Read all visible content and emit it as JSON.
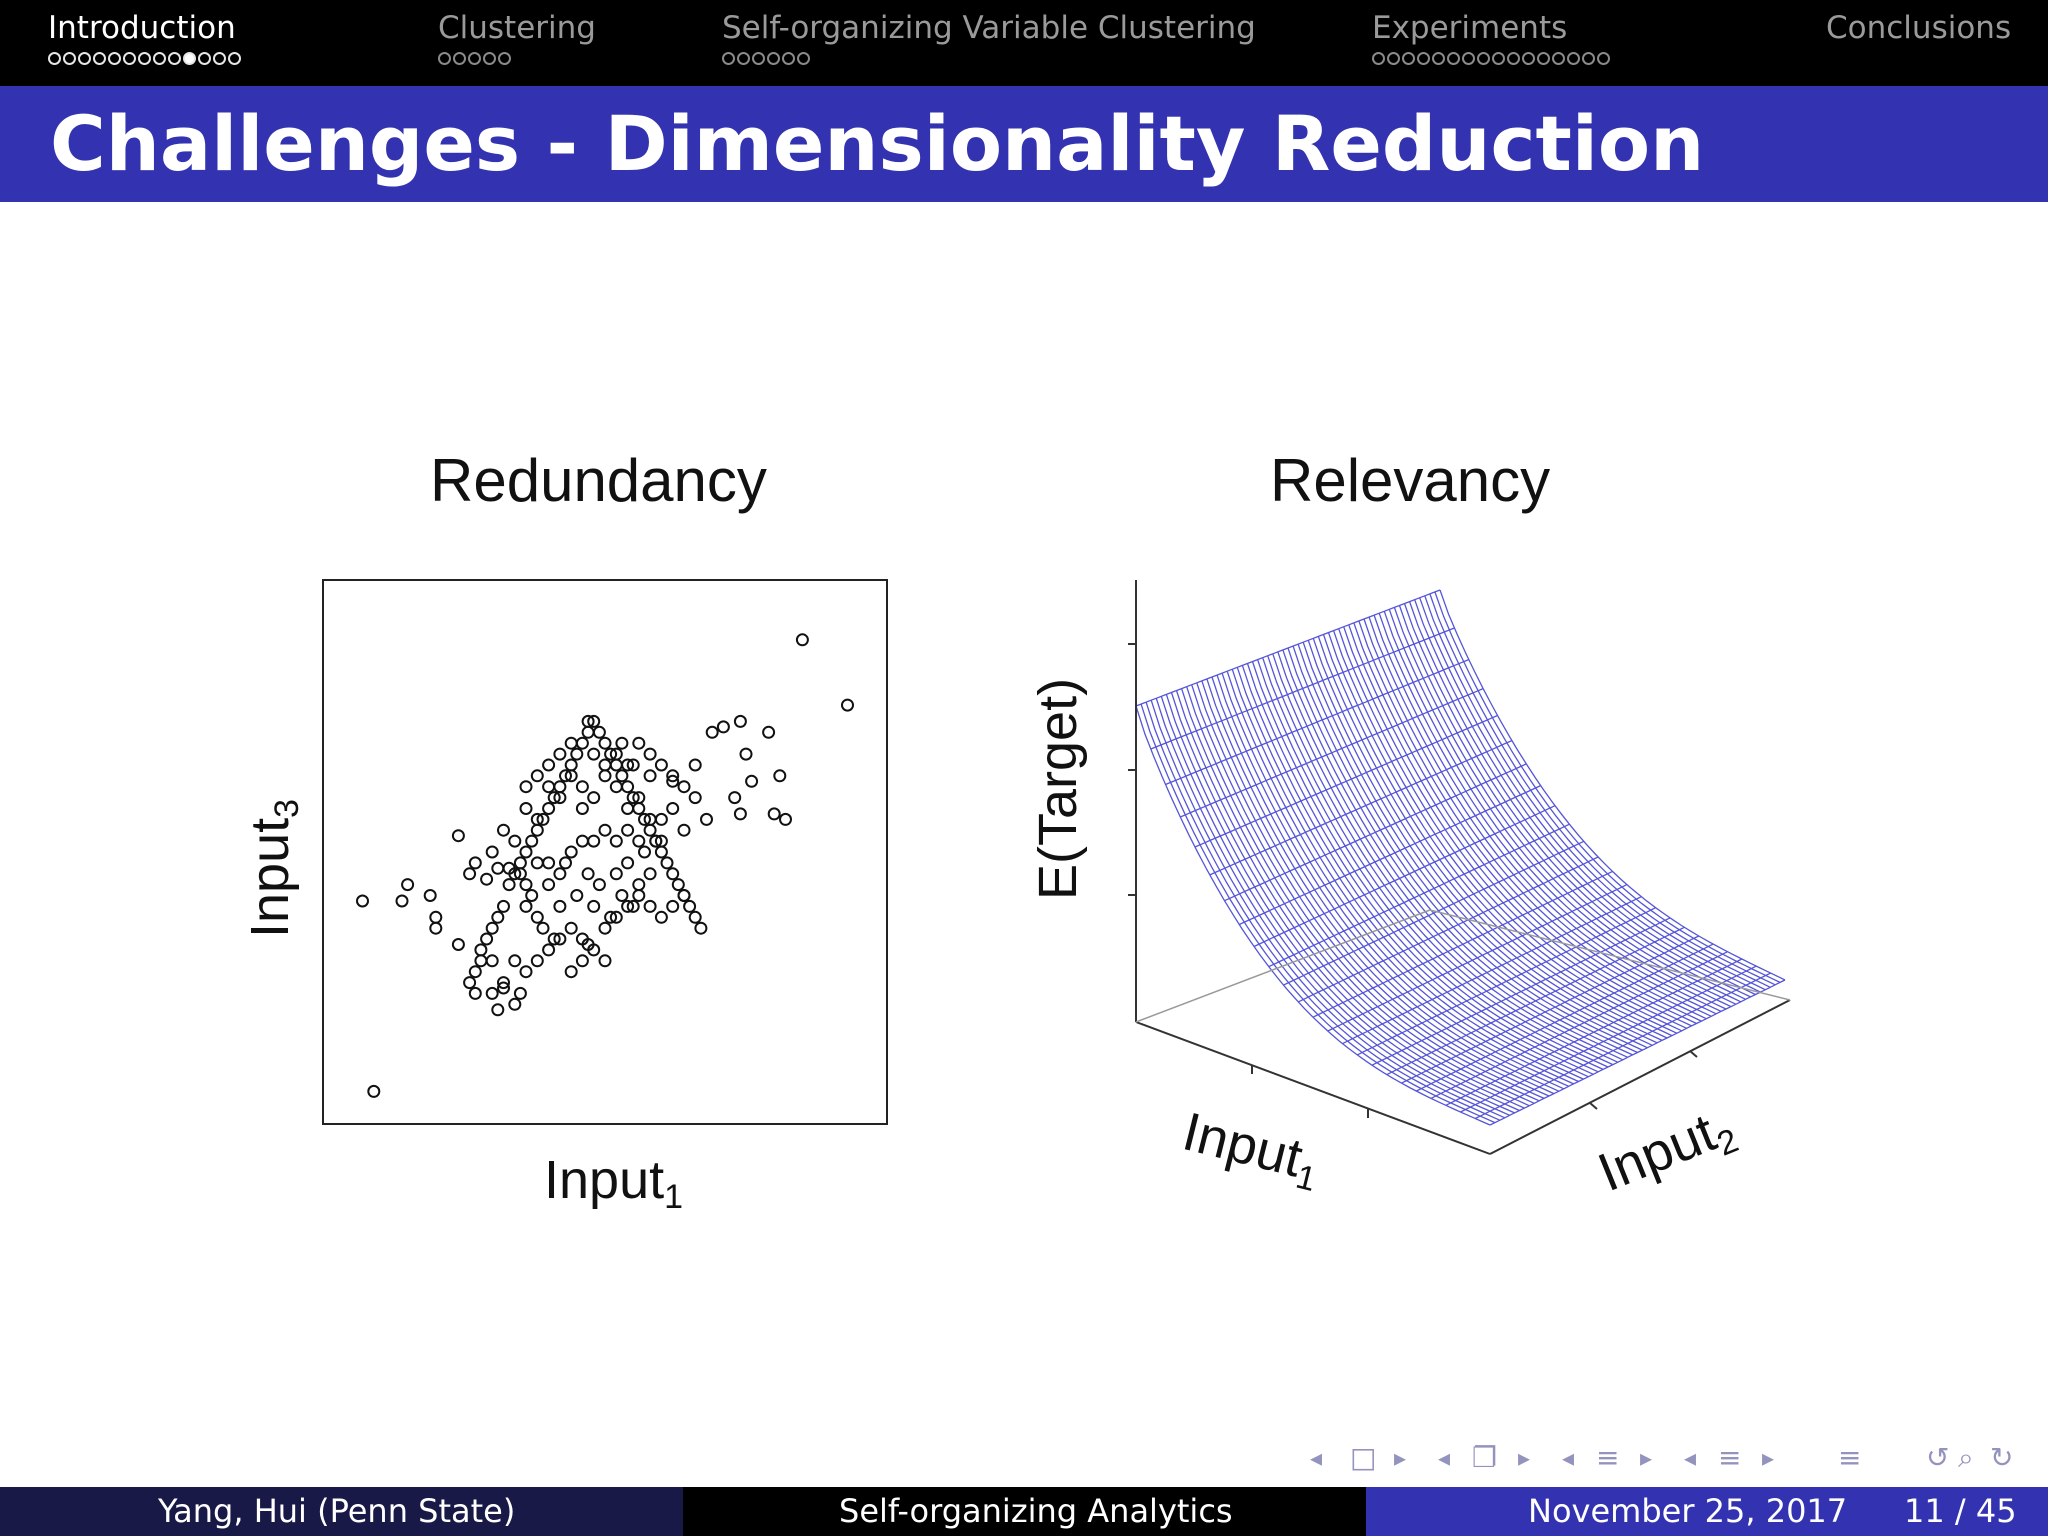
{
  "nav": {
    "sections": [
      {
        "label": "Introduction",
        "dots": 13,
        "filled": 9,
        "current": true
      },
      {
        "label": "Clustering",
        "dots": 5,
        "filled": -1,
        "current": false
      },
      {
        "label": "Self-organizing Variable Clustering",
        "dots": 6,
        "filled": -1,
        "current": false
      },
      {
        "label": "Experiments",
        "dots": 16,
        "filled": -1,
        "current": false
      },
      {
        "label": "Conclusions",
        "dots": 0,
        "filled": -1,
        "current": false
      }
    ]
  },
  "slide": {
    "title": "Challenges - Dimensionality Reduction"
  },
  "figure": {
    "left": {
      "title": "Redundancy",
      "xlabel": "Input",
      "xlabel_sub": "1",
      "ylabel": "Input",
      "ylabel_sub": "3"
    },
    "right": {
      "title": "Relevancy",
      "zlabel": "E(Target)",
      "xlabel": "Input",
      "xlabel_sub": "1",
      "ylabel": "Input",
      "ylabel_sub": "2"
    }
  },
  "chart_data": [
    {
      "type": "scatter",
      "title": "Redundancy",
      "xlabel": "Input1",
      "ylabel": "Input3",
      "xlim": [
        0,
        100
      ],
      "ylim": [
        0,
        100
      ],
      "grid": false,
      "points": [
        [
          9,
          6
        ],
        [
          7,
          41
        ],
        [
          14,
          41
        ],
        [
          15,
          44
        ],
        [
          19,
          42
        ],
        [
          20,
          38
        ],
        [
          20,
          36
        ],
        [
          24,
          33
        ],
        [
          27,
          24
        ],
        [
          27,
          28
        ],
        [
          28,
          32
        ],
        [
          29,
          34
        ],
        [
          30,
          36
        ],
        [
          31,
          38
        ],
        [
          32,
          40
        ],
        [
          33,
          44
        ],
        [
          34,
          46
        ],
        [
          35,
          48
        ],
        [
          36,
          50
        ],
        [
          37,
          52
        ],
        [
          38,
          54
        ],
        [
          39,
          56
        ],
        [
          40,
          58
        ],
        [
          41,
          60
        ],
        [
          42,
          62
        ],
        [
          43,
          64
        ],
        [
          44,
          66
        ],
        [
          45,
          68
        ],
        [
          46,
          70
        ],
        [
          47,
          72
        ],
        [
          48,
          74
        ],
        [
          49,
          72
        ],
        [
          50,
          70
        ],
        [
          51,
          68
        ],
        [
          52,
          66
        ],
        [
          53,
          64
        ],
        [
          54,
          62
        ],
        [
          55,
          60
        ],
        [
          56,
          58
        ],
        [
          57,
          56
        ],
        [
          58,
          54
        ],
        [
          59,
          52
        ],
        [
          60,
          50
        ],
        [
          61,
          48
        ],
        [
          62,
          46
        ],
        [
          63,
          44
        ],
        [
          64,
          42
        ],
        [
          65,
          40
        ],
        [
          66,
          38
        ],
        [
          67,
          36
        ],
        [
          26,
          26
        ],
        [
          28,
          30
        ],
        [
          30,
          30
        ],
        [
          32,
          26
        ],
        [
          34,
          30
        ],
        [
          35,
          24
        ],
        [
          36,
          40
        ],
        [
          37,
          42
        ],
        [
          38,
          38
        ],
        [
          39,
          36
        ],
        [
          40,
          44
        ],
        [
          41,
          34
        ],
        [
          42,
          40
        ],
        [
          43,
          48
        ],
        [
          44,
          36
        ],
        [
          45,
          42
        ],
        [
          46,
          34
        ],
        [
          47,
          46
        ],
        [
          48,
          40
        ],
        [
          49,
          44
        ],
        [
          50,
          36
        ],
        [
          51,
          38
        ],
        [
          52,
          46
        ],
        [
          53,
          42
        ],
        [
          54,
          48
        ],
        [
          55,
          40
        ],
        [
          56,
          44
        ],
        [
          57,
          50
        ],
        [
          58,
          46
        ],
        [
          59,
          52
        ],
        [
          30,
          50
        ],
        [
          32,
          54
        ],
        [
          34,
          52
        ],
        [
          36,
          58
        ],
        [
          38,
          56
        ],
        [
          40,
          62
        ],
        [
          42,
          60
        ],
        [
          44,
          64
        ],
        [
          46,
          58
        ],
        [
          48,
          60
        ],
        [
          50,
          66
        ],
        [
          52,
          62
        ],
        [
          54,
          58
        ],
        [
          56,
          60
        ],
        [
          58,
          64
        ],
        [
          60,
          56
        ],
        [
          62,
          58
        ],
        [
          64,
          54
        ],
        [
          66,
          60
        ],
        [
          68,
          56
        ],
        [
          24,
          53
        ],
        [
          26,
          46
        ],
        [
          27,
          48
        ],
        [
          29,
          45
        ],
        [
          31,
          47
        ],
        [
          33,
          47
        ],
        [
          35,
          46
        ],
        [
          36,
          44
        ],
        [
          38,
          48
        ],
        [
          40,
          48
        ],
        [
          42,
          46
        ],
        [
          44,
          50
        ],
        [
          46,
          52
        ],
        [
          48,
          52
        ],
        [
          50,
          54
        ],
        [
          52,
          52
        ],
        [
          54,
          54
        ],
        [
          56,
          52
        ],
        [
          58,
          56
        ],
        [
          60,
          52
        ],
        [
          30,
          24
        ],
        [
          31,
          21
        ],
        [
          32,
          25
        ],
        [
          34,
          22
        ],
        [
          36,
          28
        ],
        [
          38,
          30
        ],
        [
          40,
          32
        ],
        [
          42,
          34
        ],
        [
          44,
          28
        ],
        [
          46,
          30
        ],
        [
          47,
          33
        ],
        [
          48,
          32
        ],
        [
          50,
          30
        ],
        [
          52,
          38
        ],
        [
          54,
          40
        ],
        [
          56,
          42
        ],
        [
          58,
          40
        ],
        [
          60,
          38
        ],
        [
          62,
          40
        ],
        [
          64,
          42
        ],
        [
          36,
          62
        ],
        [
          38,
          64
        ],
        [
          40,
          66
        ],
        [
          42,
          68
        ],
        [
          44,
          70
        ],
        [
          46,
          62
        ],
        [
          48,
          68
        ],
        [
          50,
          64
        ],
        [
          52,
          68
        ],
        [
          54,
          66
        ],
        [
          56,
          70
        ],
        [
          58,
          68
        ],
        [
          60,
          66
        ],
        [
          62,
          64
        ],
        [
          64,
          62
        ],
        [
          47,
          74
        ],
        [
          53,
          70
        ],
        [
          55,
          66
        ],
        [
          62,
          63
        ],
        [
          66,
          66
        ],
        [
          69,
          72
        ],
        [
          71,
          73
        ],
        [
          74,
          74
        ],
        [
          75,
          68
        ],
        [
          76,
          63
        ],
        [
          73,
          60
        ],
        [
          74,
          57
        ],
        [
          79,
          72
        ],
        [
          81,
          64
        ],
        [
          80,
          57
        ],
        [
          82,
          56
        ],
        [
          85,
          89
        ],
        [
          93,
          77
        ]
      ]
    },
    {
      "type": "surface",
      "title": "Relevancy",
      "xlabel": "Input1",
      "ylabel": "Input2",
      "zlabel": "E(Target)",
      "grid_lines": {
        "input1": 60,
        "input2": 24
      },
      "shape": "convex-decreasing-in-input1"
    }
  ],
  "beamer_nav": {
    "symbols": [
      "◂",
      "□",
      "▸",
      "◂",
      "❐",
      "▸",
      "◂",
      "≡",
      "▸",
      "◂",
      "≡",
      "▸",
      "≡",
      "↺",
      "⌕",
      "↻"
    ]
  },
  "footer": {
    "author": "Yang, Hui  (Penn State)",
    "talk_title": "Self-organizing Analytics",
    "date": "November 25, 2017",
    "page": "11 / 45"
  },
  "colors": {
    "title_bar": "#3333b2",
    "footer_left": "#191947",
    "footer_mid": "#000000",
    "footer_right": "#3333b2",
    "surface_mesh": "#5555d8"
  }
}
